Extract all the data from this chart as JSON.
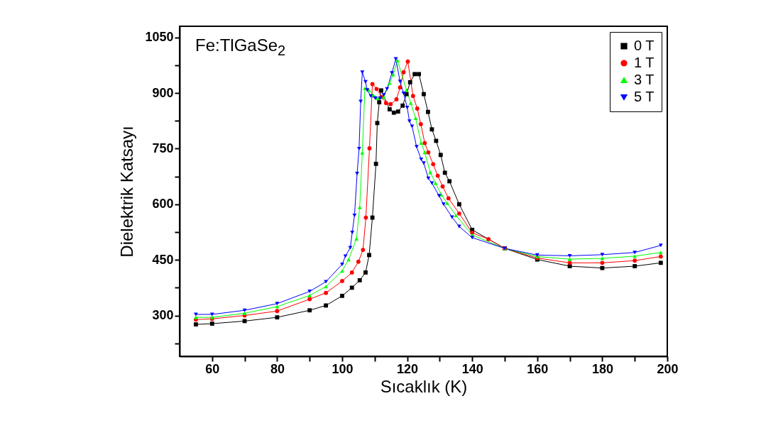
{
  "chart_data": {
    "type": "line",
    "xlabel": "Sıcaklık (K)",
    "ylabel": "Dielektrik Katsayı",
    "annotations": [
      "Fe:TlGaSe$_{2}$"
    ],
    "xlim": [
      50,
      200
    ],
    "xticks": [
      60,
      {
        "value": 70,
        "label": null
      },
      80,
      {
        "value": 90,
        "label": null
      },
      100,
      {
        "value": 110,
        "label": null
      },
      120,
      {
        "value": 130,
        "label": null
      },
      140,
      {
        "value": 150,
        "label": null
      },
      160,
      {
        "value": 170,
        "label": null
      },
      180,
      {
        "value": 190,
        "label": null
      },
      200
    ],
    "ylim": [
      190,
      1080
    ],
    "yticks": [
      {
        "value": 225,
        "label": null
      },
      300,
      {
        "value": 375,
        "label": null
      },
      450,
      {
        "value": 525,
        "label": null
      },
      600,
      {
        "value": 675,
        "label": null
      },
      750,
      {
        "value": 825,
        "label": null
      },
      900,
      {
        "value": 975,
        "label": null
      },
      1050
    ],
    "grid": false,
    "legend": "top right",
    "line_style": "solid",
    "series": [
      {
        "name": "0 T",
        "color": "#000000",
        "marker": "square",
        "x": [
          55,
          60,
          70,
          80,
          90,
          95,
          100,
          103,
          105.4,
          107.2,
          108.3,
          109.3,
          110.4,
          110.8,
          111.4,
          112.0,
          114.6,
          115.9,
          117.2,
          118.6,
          119.8,
          120.9,
          122.3,
          123.6,
          125.1,
          126.4,
          127.6,
          128.9,
          130.3,
          131.6,
          133.0,
          136,
          140,
          150,
          160,
          170,
          180,
          190,
          198
        ],
        "values": [
          276,
          278,
          285,
          295,
          314,
          327,
          353,
          375,
          395,
          416,
          463,
          564,
          709,
          819,
          875,
          907,
          856,
          847,
          850,
          866,
          897,
          929,
          951,
          951,
          897,
          849,
          802,
          771,
          733,
          685,
          662,
          600,
          531,
          481,
          451,
          433,
          428,
          433,
          442
        ]
      },
      {
        "name": "1 T",
        "color": "#ff0000",
        "marker": "circle",
        "x": [
          55,
          60,
          70,
          80,
          90,
          95,
          100,
          103,
          105,
          106.4,
          107.3,
          108.4,
          109.3,
          110.6,
          112.2,
          113.5,
          114.9,
          116.7,
          117.8,
          118.9,
          120.2,
          121.8,
          123.1,
          124.2,
          125.4,
          126.5,
          128.0,
          129.4,
          130.9,
          132.7,
          136,
          140,
          145,
          150,
          160,
          170,
          180,
          190,
          198
        ],
        "values": [
          289,
          291,
          300,
          312,
          344,
          361,
          393,
          416,
          445,
          477,
          564,
          751,
          924,
          911,
          889,
          873,
          870,
          883,
          915,
          956,
          985,
          892,
          858,
          816,
          765,
          740,
          708,
          677,
          648,
          616,
          575,
          523,
          506,
          481,
          455,
          442,
          442,
          448,
          459
        ]
      },
      {
        "name": "3 T",
        "color": "#00ff00",
        "marker": "triangle",
        "x": [
          55,
          60,
          70,
          80,
          90,
          95,
          100,
          102,
          104.4,
          105.4,
          106.2,
          107.0,
          108.2,
          109.5,
          110.9,
          112.8,
          114.6,
          115.7,
          117.0,
          119.8,
          121.1,
          122.6,
          124.3,
          125.4,
          127.1,
          128.7,
          130.5,
          132.3,
          135,
          140,
          150,
          160,
          170,
          180,
          190,
          198
        ],
        "values": [
          295,
          295,
          306,
          324,
          354,
          378,
          420,
          451,
          507,
          592,
          739,
          913,
          908,
          895,
          886,
          889,
          927,
          950,
          988,
          908,
          873,
          832,
          765,
          740,
          686,
          657,
          626,
          603,
          570,
          517,
          481,
          459,
          452,
          454,
          460,
          470
        ]
      },
      {
        "name": "5 T",
        "color": "#0000ff",
        "marker": "triangle-down",
        "x": [
          55,
          60,
          70,
          80,
          90,
          95,
          100,
          101,
          102.5,
          103.1,
          103.8,
          104.6,
          105.2,
          105.7,
          106.2,
          107.2,
          107.7,
          108.8,
          110.2,
          111.7,
          112.8,
          113.8,
          115.3,
          116.5,
          117.8,
          118.9,
          120.0,
          120.7,
          121.5,
          122.9,
          124.3,
          125.1,
          126.5,
          127.6,
          129.8,
          131.2,
          133.8,
          136,
          140,
          150,
          160,
          170,
          180,
          190,
          198
        ],
        "values": [
          303,
          303,
          314,
          332,
          365,
          391,
          438,
          460,
          483,
          524,
          570,
          683,
          750,
          877,
          956,
          930,
          908,
          892,
          886,
          886,
          895,
          911,
          954,
          992,
          931,
          899,
          861,
          824,
          810,
          755,
          721,
          711,
          670,
          657,
          623,
          600,
          565,
          540,
          510,
          481,
          463,
          461,
          464,
          470,
          489
        ]
      }
    ]
  }
}
